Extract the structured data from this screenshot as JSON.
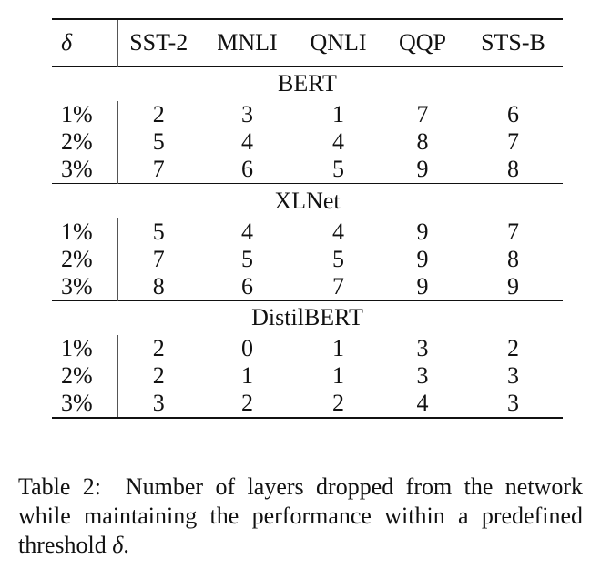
{
  "table": {
    "headers": [
      "δ",
      "SST-2",
      "MNLI",
      "QNLI",
      "QQP",
      "STS-B"
    ],
    "groups": [
      {
        "model": "BERT",
        "rows": [
          {
            "delta": "1%",
            "values": [
              "2",
              "3",
              "1",
              "7",
              "6"
            ]
          },
          {
            "delta": "2%",
            "values": [
              "5",
              "4",
              "4",
              "8",
              "7"
            ]
          },
          {
            "delta": "3%",
            "values": [
              "7",
              "6",
              "5",
              "9",
              "8"
            ]
          }
        ]
      },
      {
        "model": "XLNet",
        "rows": [
          {
            "delta": "1%",
            "values": [
              "5",
              "4",
              "4",
              "9",
              "7"
            ]
          },
          {
            "delta": "2%",
            "values": [
              "7",
              "5",
              "5",
              "9",
              "8"
            ]
          },
          {
            "delta": "3%",
            "values": [
              "8",
              "6",
              "7",
              "9",
              "9"
            ]
          }
        ]
      },
      {
        "model": "DistilBERT",
        "rows": [
          {
            "delta": "1%",
            "values": [
              "2",
              "0",
              "1",
              "3",
              "2"
            ]
          },
          {
            "delta": "2%",
            "values": [
              "2",
              "1",
              "1",
              "3",
              "3"
            ]
          },
          {
            "delta": "3%",
            "values": [
              "3",
              "2",
              "2",
              "4",
              "3"
            ]
          }
        ]
      }
    ]
  },
  "caption": {
    "label": "Table 2:",
    "text": "Number of layers dropped from the network while maintaining the performance within a predefined threshold",
    "symbol": "δ",
    "end": "."
  }
}
